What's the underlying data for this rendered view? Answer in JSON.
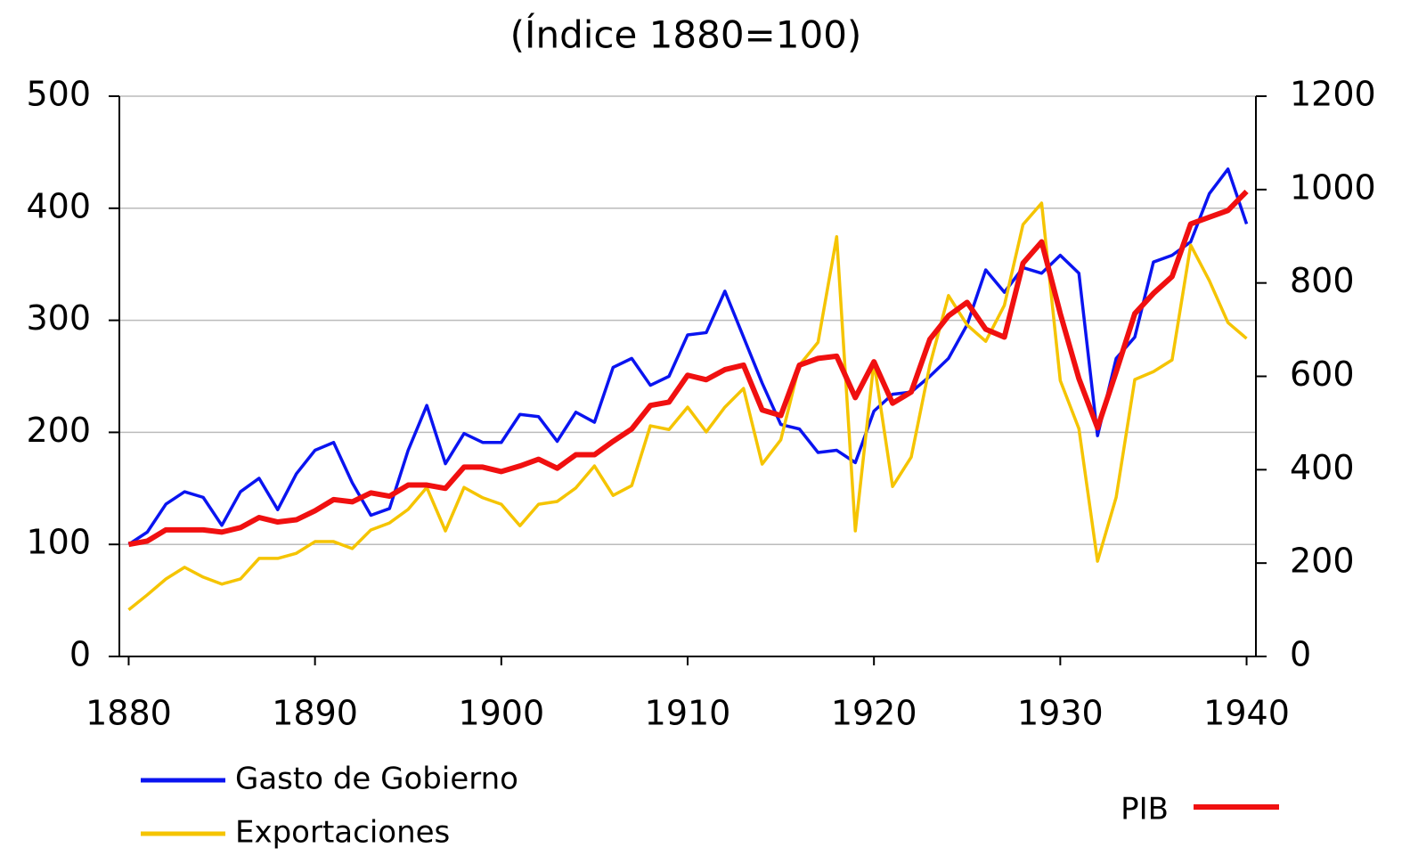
{
  "chart_data": {
    "type": "line",
    "title": "(Índice 1880=100)",
    "x": [
      1880,
      1881,
      1882,
      1883,
      1884,
      1885,
      1886,
      1887,
      1888,
      1889,
      1890,
      1891,
      1892,
      1893,
      1894,
      1895,
      1896,
      1897,
      1898,
      1899,
      1900,
      1901,
      1902,
      1903,
      1904,
      1905,
      1906,
      1907,
      1908,
      1909,
      1910,
      1911,
      1912,
      1913,
      1914,
      1915,
      1916,
      1917,
      1918,
      1919,
      1920,
      1921,
      1922,
      1923,
      1924,
      1925,
      1926,
      1927,
      1928,
      1929,
      1930,
      1931,
      1932,
      1933,
      1934,
      1935,
      1936,
      1937,
      1938,
      1939,
      1940
    ],
    "xlim": [
      1879.5,
      1940.5
    ],
    "xticks": [
      1880,
      1890,
      1900,
      1910,
      1920,
      1930,
      1940
    ],
    "ylim": [
      0,
      500
    ],
    "yticks": [
      0,
      100,
      200,
      300,
      400,
      500
    ],
    "y2lim": [
      0,
      1200
    ],
    "y2ticks": [
      0,
      200,
      400,
      600,
      800,
      1000,
      1200
    ],
    "grid": true,
    "series": [
      {
        "name": "Gasto de Gobierno",
        "color": "#0a14f0",
        "values": [
          100,
          111,
          136,
          147,
          142,
          117,
          147,
          159,
          131,
          163,
          184,
          191,
          155,
          126,
          132,
          184,
          224,
          172,
          199,
          191,
          191,
          216,
          214,
          192,
          218,
          209,
          258,
          266,
          242,
          250,
          287,
          289,
          326,
          285,
          244,
          207,
          203,
          182,
          184,
          173,
          219,
          234,
          236,
          250,
          266,
          296,
          345,
          325,
          347,
          342,
          358,
          342,
          197,
          266,
          285,
          352,
          358,
          370,
          413,
          435,
          386
        ]
      },
      {
        "name": "Exportaciones",
        "color": "#f5c400",
        "axis": "y2",
        "values": [
          100,
          132,
          166,
          191,
          170,
          155,
          166,
          210,
          210,
          221,
          246,
          246,
          231,
          271,
          286,
          315,
          362,
          269,
          362,
          340,
          326,
          280,
          326,
          332,
          361,
          408,
          345,
          366,
          494,
          486,
          534,
          481,
          534,
          574,
          412,
          464,
          624,
          673,
          899,
          269,
          631,
          364,
          427,
          624,
          773,
          710,
          675,
          752,
          925,
          971,
          591,
          488,
          204,
          341,
          593,
          610,
          635,
          881,
          805,
          715,
          681
        ]
      },
      {
        "name": "PIB",
        "color": "#f01010",
        "values": [
          100,
          103,
          113,
          113,
          113,
          111,
          115,
          124,
          120,
          122,
          130,
          140,
          138,
          146,
          143,
          153,
          153,
          150,
          169,
          169,
          165,
          170,
          176,
          168,
          180,
          180,
          192,
          203,
          224,
          227,
          251,
          247,
          256,
          260,
          220,
          215,
          260,
          266,
          268,
          231,
          263,
          226,
          236,
          283,
          304,
          316,
          292,
          285,
          351,
          370,
          306,
          248,
          204,
          254,
          306,
          324,
          339,
          386,
          392,
          398,
          415
        ]
      }
    ]
  }
}
